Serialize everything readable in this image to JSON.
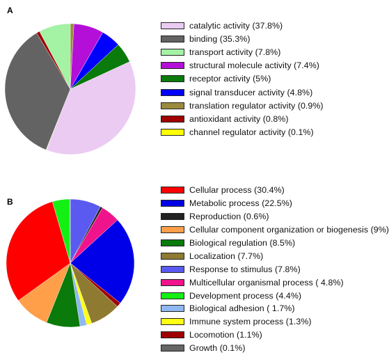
{
  "chart_data": [
    {
      "type": "pie",
      "panel_label": "A",
      "legend_position": "right",
      "start": "top",
      "direction": "clockwise",
      "slices": [
        {
          "label": "catalytic activity (37.8%)",
          "value": 37.8,
          "color": "#EBCBF2"
        },
        {
          "label": "binding (35.3%)",
          "value": 35.3,
          "color": "#636363"
        },
        {
          "label": "transport activity (7.8%)",
          "value": 7.8,
          "color": "#A4F2A4"
        },
        {
          "label": "structural molecule activity (7.4%)",
          "value": 7.4,
          "color": "#B40FD8"
        },
        {
          "label": "receptor activity (5%)",
          "value": 5.0,
          "color": "#0A7A0A"
        },
        {
          "label": "signal transducer activity (4.8%)",
          "value": 4.8,
          "color": "#0000FF"
        },
        {
          "label": "translation regulator activity (0.9%)",
          "value": 0.9,
          "color": "#9A8A3E"
        },
        {
          "label": "antioxidant activity (0.8%)",
          "value": 0.8,
          "color": "#A00000"
        },
        {
          "label": "channel regulator activity (0.1%)",
          "value": 0.1,
          "color": "#FFFF00"
        }
      ],
      "pie_order": [
        "translation regulator activity (0.9%)",
        "structural molecule activity (7.4%)",
        "signal transducer activity (4.8%)",
        "receptor activity (5%)",
        "catalytic activity (37.8%)",
        "channel regulator activity (0.1%)",
        "binding (35.3%)",
        "antioxidant activity (0.8%)",
        "transport activity (7.8%)"
      ]
    },
    {
      "type": "pie",
      "panel_label": "B",
      "legend_position": "right",
      "start": "top",
      "direction": "clockwise",
      "slices": [
        {
          "label": "Cellular process (30.4%)",
          "value": 30.4,
          "color": "#FF0000"
        },
        {
          "label": "Metabolic process (22.5%)",
          "value": 22.5,
          "color": "#0000E8"
        },
        {
          "label": "Reproduction (0.6%)",
          "value": 0.6,
          "color": "#222222"
        },
        {
          "label": "Cellular component organization or biogenesis (9%)",
          "value": 9.0,
          "color": "#FF9F4A"
        },
        {
          "label": "Biological regulation (8.5%)",
          "value": 8.5,
          "color": "#0A7A0A"
        },
        {
          "label": "Localization (7.7%)",
          "value": 7.7,
          "color": "#8F7A32"
        },
        {
          "label": "Response to stimulus (7.8%)",
          "value": 7.8,
          "color": "#5A5AF0"
        },
        {
          "label": "Multicellular organismal process ( 4.8%)",
          "value": 4.8,
          "color": "#F0148C"
        },
        {
          "label": "Development process (4.4%)",
          "value": 4.4,
          "color": "#14F014"
        },
        {
          "label": "Biological adhesion ( 1.7%)",
          "value": 1.7,
          "color": "#8FB8F0"
        },
        {
          "label": "Immune system process (1.3%)",
          "value": 1.3,
          "color": "#FFFF14"
        },
        {
          "label": "Locomotion (1.1%)",
          "value": 1.1,
          "color": "#A00000"
        },
        {
          "label": "Growth (0.1%)",
          "value": 0.1,
          "color": "#666666"
        }
      ],
      "pie_order": [
        "Response to stimulus (7.8%)",
        "Reproduction (0.6%)",
        "Multicellular organismal process ( 4.8%)",
        "Metabolic process (22.5%)",
        "Locomotion (1.1%)",
        "Localization (7.7%)",
        "Immune system process (1.3%)",
        "Biological adhesion ( 1.7%)",
        "Biological regulation (8.5%)",
        "Cellular component organization or biogenesis (9%)",
        "Cellular process (30.4%)",
        "Development process (4.4%)",
        "Growth (0.1%)"
      ]
    }
  ]
}
